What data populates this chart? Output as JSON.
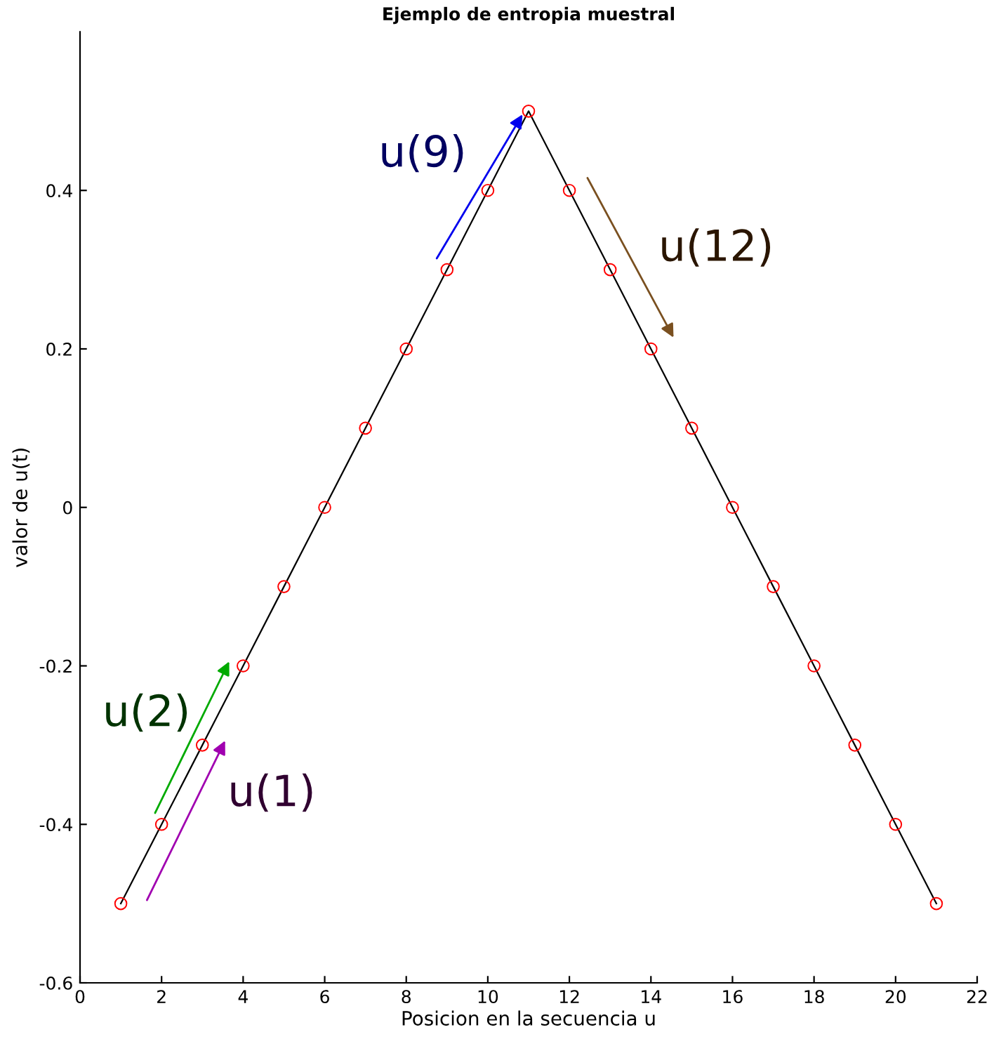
{
  "chart_data": {
    "type": "line",
    "title": "Ejemplo de entropia muestral",
    "xlabel": "Posicion en la secuencia u",
    "ylabel": "valor de u(t)",
    "x": [
      1,
      2,
      3,
      4,
      5,
      6,
      7,
      8,
      9,
      10,
      11,
      12,
      13,
      14,
      15,
      16,
      17,
      18,
      19,
      20,
      21
    ],
    "series": [
      {
        "color": "#000000",
        "values": [
          -0.5,
          -0.4,
          -0.3,
          -0.2,
          -0.1,
          0,
          0.1,
          0.2,
          0.3,
          0.4,
          0.5,
          0.4,
          0.3,
          0.2,
          0.1,
          0,
          -0.1,
          -0.2,
          -0.3,
          -0.4,
          -0.5
        ]
      }
    ],
    "marker": "circle",
    "line_style": "solid",
    "grid": false,
    "legend": false,
    "xlim": [
      0,
      22
    ],
    "xticks": [
      0,
      2,
      4,
      6,
      8,
      10,
      12,
      14,
      16,
      18,
      20,
      22
    ],
    "ylim": [
      -0.6,
      0.6
    ],
    "yticks": [
      -0.6,
      -0.4,
      -0.2,
      0,
      0.2,
      0.4
    ],
    "annotations": [
      "u(9)",
      "u(12)",
      "u(2)",
      "u(1)"
    ]
  }
}
